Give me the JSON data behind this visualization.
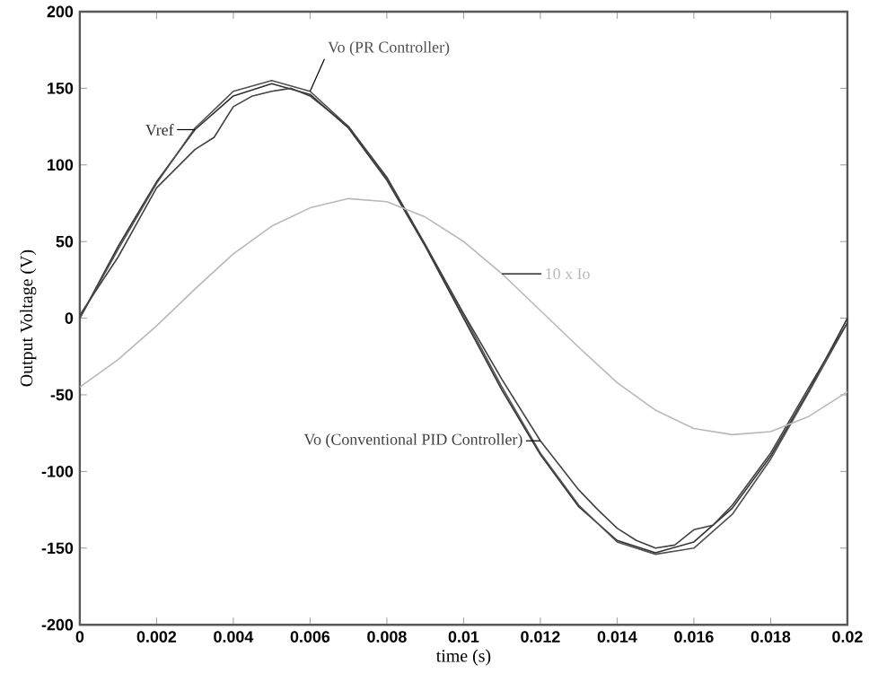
{
  "chart_data": {
    "type": "line",
    "xlabel": "time (s)",
    "ylabel": "Output Voltage (V)",
    "xlim": [
      0,
      0.02
    ],
    "ylim": [
      -200,
      200
    ],
    "xticks": [
      0,
      0.002,
      0.004,
      0.006,
      0.008,
      0.01,
      0.012,
      0.014,
      0.016,
      0.018,
      0.02
    ],
    "yticks": [
      -200,
      -150,
      -100,
      -50,
      0,
      50,
      100,
      150,
      200
    ],
    "series": [
      {
        "name": "Vref",
        "color": "#303030",
        "x": [
          0,
          0.001,
          0.002,
          0.003,
          0.004,
          0.005,
          0.006,
          0.007,
          0.008,
          0.009,
          0.01,
          0.011,
          0.012,
          0.013,
          0.014,
          0.015,
          0.016,
          0.017,
          0.018,
          0.019,
          0.02
        ],
        "values": [
          0,
          47,
          89,
          123,
          145,
          153,
          146,
          124,
          90,
          47,
          0,
          -47,
          -89,
          -123,
          -145,
          -153,
          -146,
          -124,
          -90,
          -47,
          0
        ]
      },
      {
        "name": "Vo (PR Controller)",
        "color": "#505050",
        "x": [
          0,
          0.001,
          0.002,
          0.003,
          0.004,
          0.005,
          0.006,
          0.007,
          0.008,
          0.009,
          0.01,
          0.011,
          0.012,
          0.013,
          0.014,
          0.015,
          0.016,
          0.017,
          0.018,
          0.019,
          0.02
        ],
        "values": [
          0,
          45,
          88,
          124,
          148,
          155,
          148,
          125,
          91,
          48,
          2,
          -45,
          -88,
          -122,
          -146,
          -154,
          -150,
          -128,
          -92,
          -48,
          -3
        ]
      },
      {
        "name": "Vo (Conventional PID Controller)",
        "color": "#404040",
        "x": [
          0,
          0.001,
          0.002,
          0.003,
          0.0035,
          0.004,
          0.0045,
          0.005,
          0.0055,
          0.006,
          0.007,
          0.008,
          0.009,
          0.01,
          0.011,
          0.012,
          0.013,
          0.0135,
          0.014,
          0.0145,
          0.015,
          0.0155,
          0.016,
          0.0165,
          0.017,
          0.018,
          0.019,
          0.02
        ],
        "values": [
          2,
          40,
          85,
          110,
          118,
          138,
          145,
          148,
          150,
          145,
          125,
          92,
          48,
          3,
          -40,
          -80,
          -112,
          -125,
          -137,
          -145,
          -150,
          -148,
          -138,
          -135,
          -122,
          -88,
          -45,
          -3
        ]
      },
      {
        "name": "10 x Io",
        "color": "#b8b8b8",
        "x": [
          0,
          0.001,
          0.002,
          0.003,
          0.004,
          0.005,
          0.006,
          0.007,
          0.008,
          0.009,
          0.01,
          0.011,
          0.012,
          0.013,
          0.014,
          0.015,
          0.016,
          0.017,
          0.018,
          0.019,
          0.02
        ],
        "values": [
          -45,
          -27,
          -5,
          19,
          42,
          60,
          72,
          78,
          76,
          66,
          50,
          29,
          5,
          -19,
          -42,
          -60,
          -72,
          -76,
          -74,
          -64,
          -48
        ]
      }
    ]
  }
}
